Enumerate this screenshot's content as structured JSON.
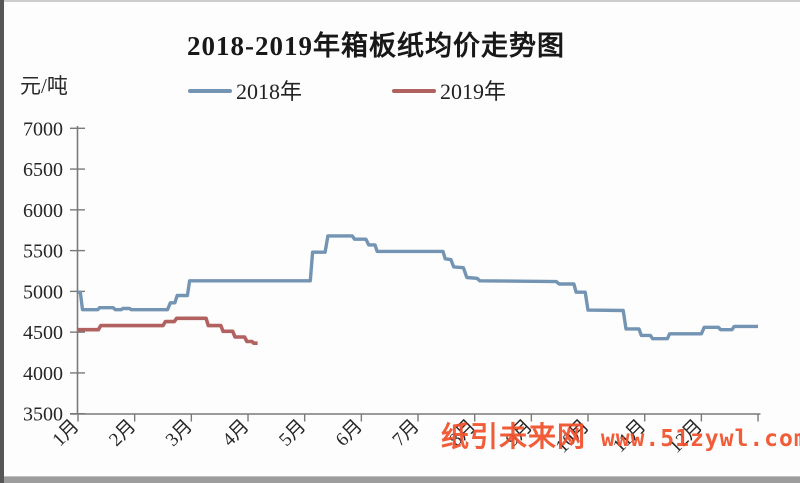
{
  "title": "2018-2019年箱板纸均价走势图",
  "y_axis_unit": "元/吨",
  "watermark": {
    "site_name": "纸引未来网",
    "url": " www.51zywl.com",
    "color": "#f1502b"
  },
  "chart_data": {
    "type": "line",
    "title": "2018-2019年箱板纸均价走势图",
    "ylabel": "元/吨",
    "ylim": [
      3500,
      7000
    ],
    "y_ticks": [
      7000,
      6500,
      6000,
      5500,
      5000,
      4500,
      4000,
      3500
    ],
    "x_tick_labels": [
      "1月",
      "2月",
      "3月",
      "4月",
      "5月",
      "6月",
      "7月",
      "8月",
      "9月",
      "10月",
      "11月",
      "12月"
    ],
    "x_unit": "months since Jan 1 (0 = 1月1日, 12 = 12月31日)",
    "grid": false,
    "legend_position": "top",
    "axis_color": "#7a7a7a",
    "tick_label_color": "#262626",
    "series": [
      {
        "name": "2018年",
        "color": "#7394b3",
        "points": [
          [
            0.0,
            4990
          ],
          [
            0.04,
            4990
          ],
          [
            0.08,
            4775
          ],
          [
            0.35,
            4775
          ],
          [
            0.38,
            4800
          ],
          [
            0.62,
            4800
          ],
          [
            0.66,
            4775
          ],
          [
            0.76,
            4775
          ],
          [
            0.79,
            4790
          ],
          [
            0.91,
            4790
          ],
          [
            0.94,
            4775
          ],
          [
            1.58,
            4775
          ],
          [
            1.63,
            4860
          ],
          [
            1.71,
            4860
          ],
          [
            1.75,
            4950
          ],
          [
            1.93,
            4950
          ],
          [
            1.97,
            5130
          ],
          [
            4.1,
            5130
          ],
          [
            4.14,
            5480
          ],
          [
            4.36,
            5480
          ],
          [
            4.41,
            5680
          ],
          [
            4.84,
            5680
          ],
          [
            4.88,
            5640
          ],
          [
            5.08,
            5640
          ],
          [
            5.13,
            5570
          ],
          [
            5.24,
            5570
          ],
          [
            5.28,
            5490
          ],
          [
            6.44,
            5490
          ],
          [
            6.48,
            5400
          ],
          [
            6.58,
            5390
          ],
          [
            6.63,
            5300
          ],
          [
            6.8,
            5290
          ],
          [
            6.86,
            5170
          ],
          [
            7.04,
            5160
          ],
          [
            7.09,
            5130
          ],
          [
            8.44,
            5120
          ],
          [
            8.49,
            5090
          ],
          [
            8.75,
            5090
          ],
          [
            8.79,
            4990
          ],
          [
            8.95,
            4990
          ],
          [
            9.0,
            4770
          ],
          [
            9.62,
            4765
          ],
          [
            9.67,
            4540
          ],
          [
            9.9,
            4540
          ],
          [
            9.94,
            4460
          ],
          [
            10.1,
            4460
          ],
          [
            10.14,
            4420
          ],
          [
            10.4,
            4420
          ],
          [
            10.44,
            4480
          ],
          [
            11.0,
            4480
          ],
          [
            11.05,
            4560
          ],
          [
            11.3,
            4560
          ],
          [
            11.34,
            4530
          ],
          [
            11.54,
            4530
          ],
          [
            11.58,
            4570
          ],
          [
            12.0,
            4570
          ]
        ]
      },
      {
        "name": "2019年",
        "color": "#b26161",
        "points": [
          [
            0.0,
            4530
          ],
          [
            0.36,
            4530
          ],
          [
            0.4,
            4580
          ],
          [
            1.5,
            4580
          ],
          [
            1.54,
            4630
          ],
          [
            1.7,
            4630
          ],
          [
            1.74,
            4670
          ],
          [
            2.26,
            4670
          ],
          [
            2.3,
            4580
          ],
          [
            2.52,
            4580
          ],
          [
            2.56,
            4510
          ],
          [
            2.73,
            4510
          ],
          [
            2.77,
            4440
          ],
          [
            2.94,
            4440
          ],
          [
            2.98,
            4385
          ],
          [
            3.07,
            4385
          ],
          [
            3.1,
            4365
          ],
          [
            3.17,
            4365
          ]
        ]
      }
    ]
  }
}
